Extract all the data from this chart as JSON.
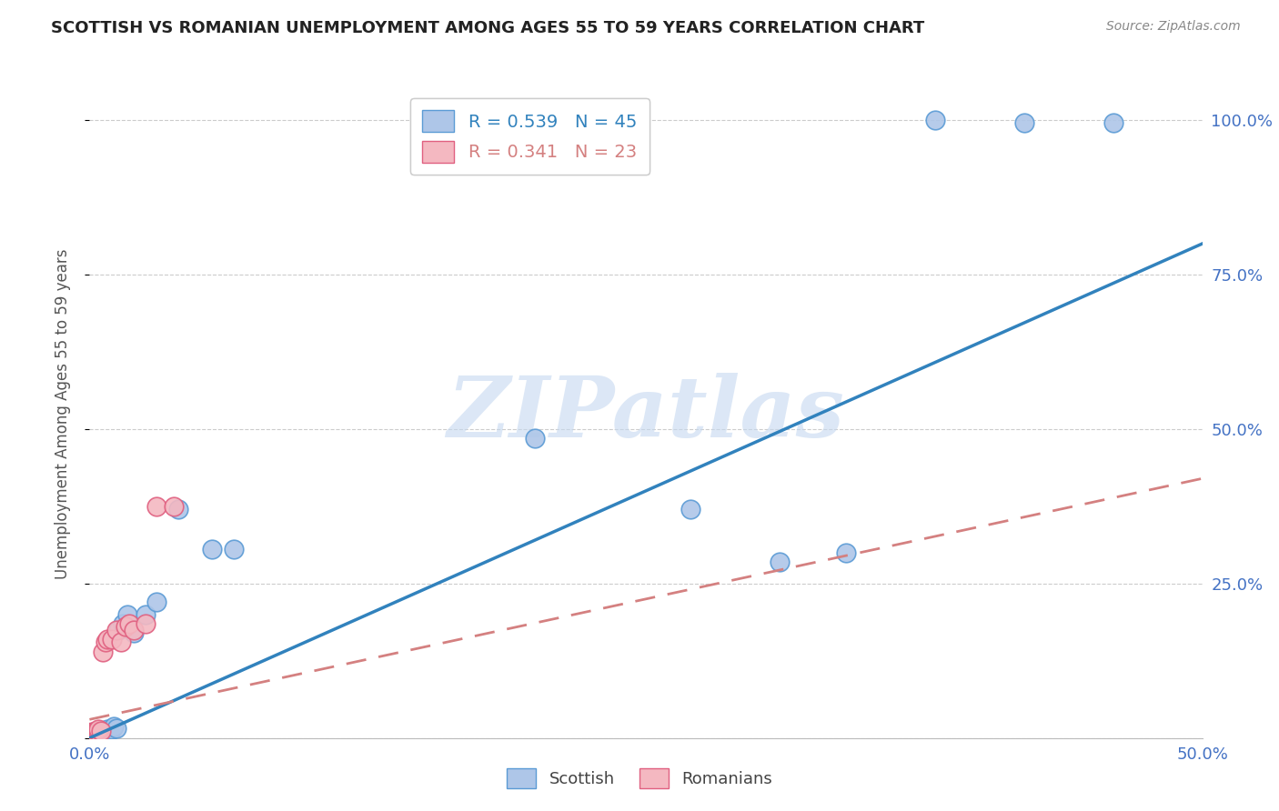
{
  "title": "SCOTTISH VS ROMANIAN UNEMPLOYMENT AMONG AGES 55 TO 59 YEARS CORRELATION CHART",
  "source": "Source: ZipAtlas.com",
  "ylabel": "Unemployment Among Ages 55 to 59 years",
  "xlim": [
    0.0,
    0.5
  ],
  "ylim": [
    0.0,
    1.05
  ],
  "xticks": [
    0.0,
    0.1,
    0.2,
    0.3,
    0.4,
    0.5
  ],
  "xticklabels": [
    "0.0%",
    "",
    "",
    "",
    "",
    "50.0%"
  ],
  "yticks": [
    0.0,
    0.25,
    0.5,
    0.75,
    1.0
  ],
  "yticklabels_right": [
    "",
    "25.0%",
    "50.0%",
    "75.0%",
    "100.0%"
  ],
  "scottish_x": [
    0.001,
    0.001,
    0.001,
    0.001,
    0.002,
    0.002,
    0.002,
    0.002,
    0.002,
    0.003,
    0.003,
    0.003,
    0.003,
    0.004,
    0.004,
    0.004,
    0.005,
    0.005,
    0.005,
    0.006,
    0.006,
    0.007,
    0.007,
    0.008,
    0.008,
    0.009,
    0.01,
    0.011,
    0.012,
    0.013,
    0.015,
    0.017,
    0.02,
    0.025,
    0.03,
    0.04,
    0.055,
    0.065,
    0.2,
    0.27,
    0.31,
    0.34,
    0.38,
    0.42,
    0.46
  ],
  "scottish_y": [
    0.005,
    0.006,
    0.007,
    0.008,
    0.005,
    0.006,
    0.007,
    0.008,
    0.01,
    0.005,
    0.006,
    0.008,
    0.01,
    0.006,
    0.008,
    0.01,
    0.006,
    0.008,
    0.012,
    0.007,
    0.01,
    0.008,
    0.012,
    0.01,
    0.015,
    0.012,
    0.015,
    0.018,
    0.016,
    0.175,
    0.185,
    0.2,
    0.17,
    0.2,
    0.22,
    0.37,
    0.305,
    0.305,
    0.485,
    0.37,
    0.285,
    0.3,
    1.0,
    0.995,
    0.995
  ],
  "romanian_x": [
    0.001,
    0.001,
    0.001,
    0.002,
    0.002,
    0.002,
    0.003,
    0.003,
    0.004,
    0.004,
    0.005,
    0.006,
    0.007,
    0.008,
    0.01,
    0.012,
    0.014,
    0.016,
    0.018,
    0.02,
    0.025,
    0.03,
    0.038
  ],
  "romanian_y": [
    0.005,
    0.008,
    0.01,
    0.005,
    0.008,
    0.01,
    0.008,
    0.012,
    0.01,
    0.015,
    0.012,
    0.14,
    0.155,
    0.16,
    0.16,
    0.175,
    0.155,
    0.18,
    0.185,
    0.175,
    0.185,
    0.375,
    0.375
  ],
  "scottish_line_x": [
    0.0,
    0.5
  ],
  "scottish_line_y": [
    0.0,
    0.8
  ],
  "romanian_line_x": [
    0.0,
    0.5
  ],
  "romanian_line_y": [
    0.03,
    0.42
  ],
  "scottish_line_color": "#3182bd",
  "romanian_line_color": "#d48080",
  "scatter_scottish_facecolor": "#aec6e8",
  "scatter_scottish_edgecolor": "#5b9bd5",
  "scatter_romanian_facecolor": "#f4b8c1",
  "scatter_romanian_edgecolor": "#e06080",
  "watermark_text": "ZIPatlas",
  "watermark_color": "#c5d8f0",
  "background_color": "#ffffff",
  "grid_color": "#cccccc",
  "tick_color": "#4472c4",
  "title_color": "#222222",
  "source_color": "#888888",
  "ylabel_color": "#555555"
}
